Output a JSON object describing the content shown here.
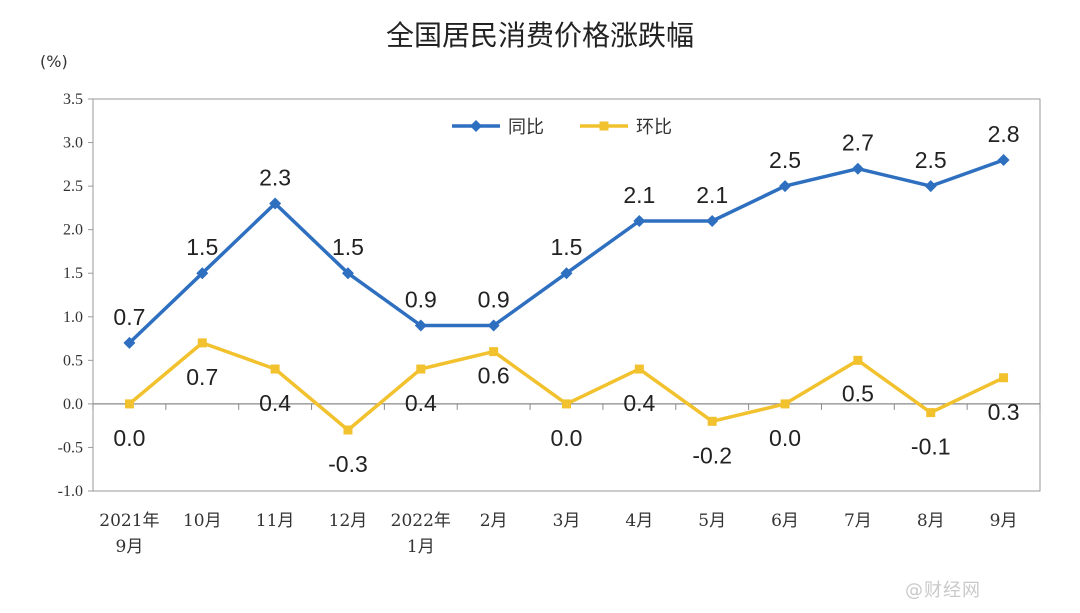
{
  "chart_data": {
    "type": "line",
    "title": "全国居民消费价格涨跌幅",
    "y_unit": "(%)",
    "categories": [
      [
        "2021年",
        "9月"
      ],
      [
        "10月"
      ],
      [
        "11月"
      ],
      [
        "12月"
      ],
      [
        "2022年",
        "1月"
      ],
      [
        "2月"
      ],
      [
        "3月"
      ],
      [
        "4月"
      ],
      [
        "5月"
      ],
      [
        "6月"
      ],
      [
        "7月"
      ],
      [
        "8月"
      ],
      [
        "9月"
      ]
    ],
    "ylim": [
      -1.0,
      3.5
    ],
    "yticks": [
      "3.5",
      "3.0",
      "2.5",
      "2.0",
      "1.5",
      "1.0",
      "0.5",
      "0.0",
      "-0.5",
      "-1.0"
    ],
    "legend_position": "top-center",
    "grid": false,
    "series": [
      {
        "name": "同比",
        "color": "#2e6fc0",
        "marker": "diamond",
        "values": [
          0.7,
          1.5,
          2.3,
          1.5,
          0.9,
          0.9,
          1.5,
          2.1,
          2.1,
          2.5,
          2.7,
          2.5,
          2.8
        ],
        "labels": [
          "0.7",
          "1.5",
          "2.3",
          "1.5",
          "0.9",
          "0.9",
          "1.5",
          "2.1",
          "2.1",
          "2.5",
          "2.7",
          "2.5",
          "2.8"
        ]
      },
      {
        "name": "环比",
        "color": "#f2c12e",
        "marker": "square",
        "values": [
          0.0,
          0.7,
          0.4,
          -0.3,
          0.4,
          0.6,
          0.0,
          0.4,
          -0.2,
          0.0,
          0.5,
          -0.1,
          0.3
        ],
        "labels": [
          "0.0",
          "0.7",
          "0.4",
          "-0.3",
          "0.4",
          "0.6",
          "0.0",
          "0.4",
          "-0.2",
          "0.0",
          "0.5",
          "-0.1",
          "0.3"
        ]
      }
    ]
  },
  "watermark": "@财经网"
}
